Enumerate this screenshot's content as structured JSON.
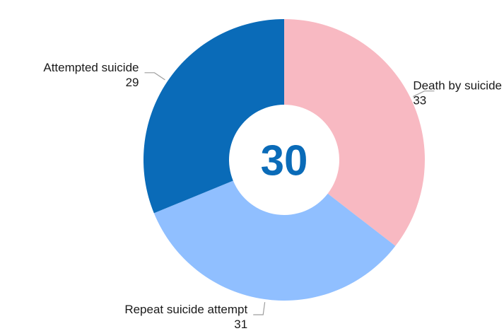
{
  "chart_data": {
    "type": "pie",
    "variant": "donut",
    "center_value": "30",
    "categories": [
      "Death by suicide",
      "Repeat suicide attempt",
      "Attempted suicide"
    ],
    "values": [
      33,
      31,
      29
    ],
    "colors": [
      "#f8b9c2",
      "#90bfff",
      "#0a6bb8"
    ],
    "legend": "none"
  }
}
